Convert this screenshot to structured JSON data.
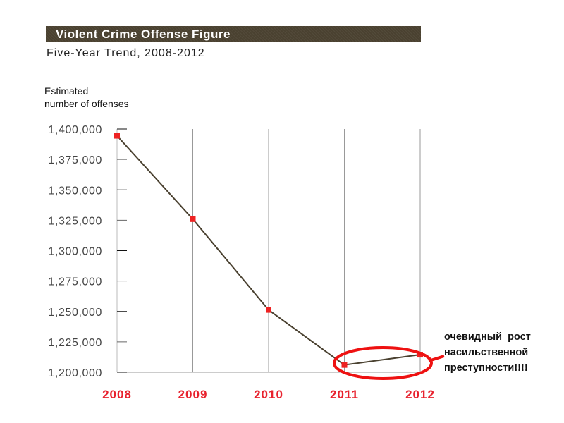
{
  "chart_data": {
    "type": "line",
    "title": "Violent Crime Offense Figure",
    "subtitle": "Five-Year Trend, 2008-2012",
    "ylabel_lines": [
      "Estimated",
      "number of offenses"
    ],
    "xlabel": "",
    "categories": [
      "2008",
      "2009",
      "2010",
      "2011",
      "2012"
    ],
    "values": [
      1394461,
      1325896,
      1251248,
      1206005,
      1214462
    ],
    "ylim": [
      1200000,
      1400000
    ],
    "yticks": [
      1200000,
      1225000,
      1250000,
      1275000,
      1300000,
      1325000,
      1350000,
      1375000,
      1400000
    ],
    "ytick_labels": [
      "1,200,000",
      "1,225,000",
      "1,250,000",
      "1,275,000",
      "1,300,000",
      "1,325,000",
      "1,350,000",
      "1,375,000",
      "1,400,000"
    ],
    "grid": "vertical",
    "annotation": {
      "lines": [
        "очевидный  рост",
        "насильственной",
        "преступности!!!!"
      ],
      "highlight": [
        "2011",
        "2012"
      ]
    },
    "colors": {
      "line": "#4a4130",
      "marker": "#ee2222",
      "xlabels": "#e8222e",
      "ellipse": "#ee1111",
      "header": "#4a4130"
    }
  }
}
